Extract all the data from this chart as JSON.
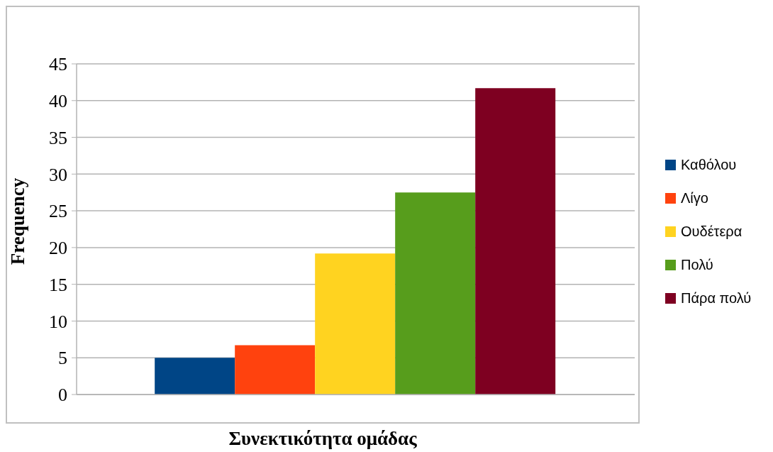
{
  "chart_data": {
    "type": "bar",
    "xlabel": "Συνεκτικότητα ομάδας",
    "ylabel": "Frequency",
    "categories": [
      null
    ],
    "series": [
      {
        "name": "Καθόλου",
        "color": "#004586",
        "values": [
          5
        ]
      },
      {
        "name": "Λίγο",
        "color": "#ff420e",
        "values": [
          6.7
        ]
      },
      {
        "name": "Ουδέτερα",
        "color": "#ffd320",
        "values": [
          19.2
        ]
      },
      {
        "name": "Πολύ",
        "color": "#579d1c",
        "values": [
          27.5
        ]
      },
      {
        "name": "Πάρα πολύ",
        "color": "#7e0021",
        "values": [
          41.7
        ]
      }
    ],
    "ylim": [
      0,
      45
    ],
    "yticks": [
      0,
      5,
      10,
      15,
      20,
      25,
      30,
      35,
      40,
      45
    ],
    "grid": "y",
    "legend": "right"
  }
}
